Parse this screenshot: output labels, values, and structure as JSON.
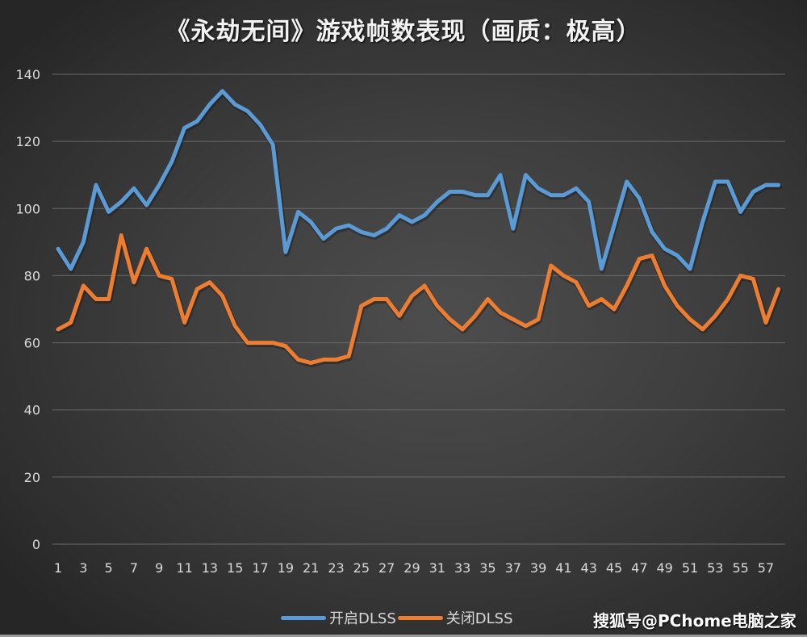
{
  "title": "《永劫无间》游戏帧数表现（画质：极高）",
  "watermark": "搜狐号@PChome电脑之家",
  "legend": [
    {
      "label": "开启DLSS",
      "color": "#5b9bd5"
    },
    {
      "label": "关闭DLSS",
      "color": "#ed7d31"
    }
  ],
  "chart_data": {
    "type": "line",
    "title": "《永劫无间》游戏帧数表现（画质：极高）",
    "xlabel": "",
    "ylabel": "",
    "ylim": [
      0,
      140
    ],
    "yticks": [
      0,
      20,
      40,
      60,
      80,
      100,
      120,
      140
    ],
    "xtick_labels": [
      "1",
      "3",
      "5",
      "7",
      "9",
      "11",
      "13",
      "15",
      "17",
      "19",
      "21",
      "23",
      "25",
      "27",
      "29",
      "31",
      "33",
      "35",
      "37",
      "39",
      "41",
      "43",
      "45",
      "47",
      "49",
      "51",
      "53",
      "55",
      "57"
    ],
    "x": [
      1,
      2,
      3,
      4,
      5,
      6,
      7,
      8,
      9,
      10,
      11,
      12,
      13,
      14,
      15,
      16,
      17,
      18,
      19,
      20,
      21,
      22,
      23,
      24,
      25,
      26,
      27,
      28,
      29,
      30,
      31,
      32,
      33,
      34,
      35,
      36,
      37,
      38,
      39,
      40,
      41,
      42,
      43,
      44,
      45,
      46,
      47,
      48,
      49,
      50,
      51,
      52,
      53,
      54,
      55,
      56,
      57,
      58
    ],
    "grid": true,
    "legend_position": "bottom",
    "series": [
      {
        "name": "开启DLSS",
        "color": "#5b9bd5",
        "values": [
          88,
          82,
          90,
          107,
          99,
          102,
          106,
          101,
          107,
          114,
          124,
          126,
          131,
          135,
          131,
          129,
          125,
          119,
          87,
          99,
          96,
          91,
          94,
          95,
          93,
          92,
          94,
          98,
          96,
          98,
          102,
          105,
          105,
          104,
          104,
          110,
          94,
          110,
          106,
          104,
          104,
          106,
          102,
          82,
          95,
          108,
          103,
          93,
          88,
          86,
          82,
          96,
          108,
          108,
          99,
          105,
          107,
          107
        ]
      },
      {
        "name": "关闭DLSS",
        "color": "#ed7d31",
        "values": [
          64,
          66,
          77,
          73,
          73,
          92,
          78,
          88,
          80,
          79,
          66,
          76,
          78,
          74,
          65,
          60,
          60,
          60,
          59,
          55,
          54,
          55,
          55,
          56,
          71,
          73,
          73,
          68,
          74,
          77,
          71,
          67,
          64,
          68,
          73,
          69,
          67,
          65,
          67,
          83,
          80,
          78,
          71,
          73,
          70,
          77,
          85,
          86,
          77,
          71,
          67,
          64,
          68,
          73,
          80,
          79,
          66,
          76
        ]
      }
    ]
  }
}
